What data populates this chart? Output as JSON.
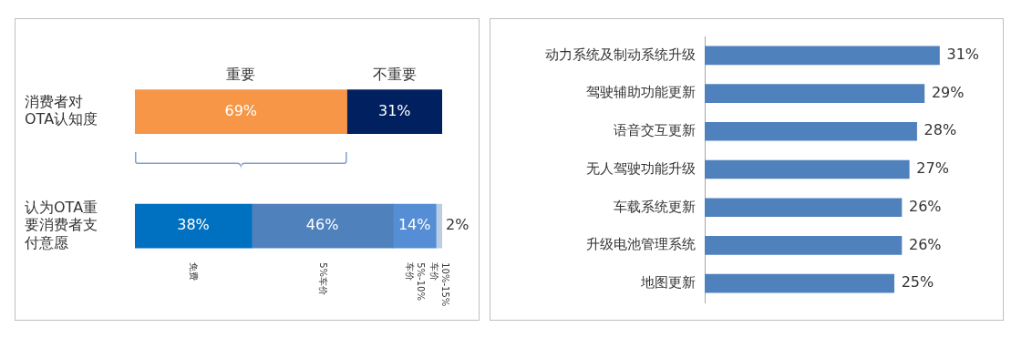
{
  "chart_data": [
    {
      "type": "bar",
      "orientation": "horizontal",
      "stacked": true,
      "categories": [
        "消费者对OTA认知度",
        "认为OTA重要消费者支付意愿"
      ],
      "series": [
        {
          "name": "重要",
          "color": "#f79646",
          "values": [
            69,
            null
          ],
          "value_labels": [
            "69%",
            null
          ]
        },
        {
          "name": "不重要",
          "color": "#002060",
          "values": [
            31,
            null
          ],
          "value_labels": [
            "31%",
            null
          ]
        },
        {
          "name": "免费",
          "color": "#0070c0",
          "values": [
            null,
            38
          ],
          "value_labels": [
            null,
            "38%"
          ]
        },
        {
          "name": "5%车价",
          "color": "#4f81bd",
          "values": [
            null,
            46
          ],
          "value_labels": [
            null,
            "46%"
          ]
        },
        {
          "name": "5%-10%车价",
          "color": "#558ed5",
          "values": [
            null,
            14
          ],
          "value_labels": [
            null,
            "14%"
          ]
        },
        {
          "name": "10%-15%车价",
          "color": "#b9cde5",
          "values": [
            null,
            2
          ],
          "value_labels": [
            null,
            "2%"
          ]
        }
      ],
      "legend": false,
      "grid": false
    },
    {
      "type": "bar",
      "orientation": "horizontal",
      "categories": [
        "动力系统及制动系统升级",
        "驾驶辅助功能更新",
        "语音交互更新",
        "无人驾驶功能升级",
        "车载系统更新",
        "升级电池管理系统",
        "地图更新"
      ],
      "values": [
        31,
        29,
        28,
        27,
        26,
        26,
        25
      ],
      "value_labels": [
        "31%",
        "29%",
        "28%",
        "27%",
        "26%",
        "26%",
        "25%"
      ],
      "color": "#4f81bd",
      "legend": false,
      "grid": false
    }
  ]
}
